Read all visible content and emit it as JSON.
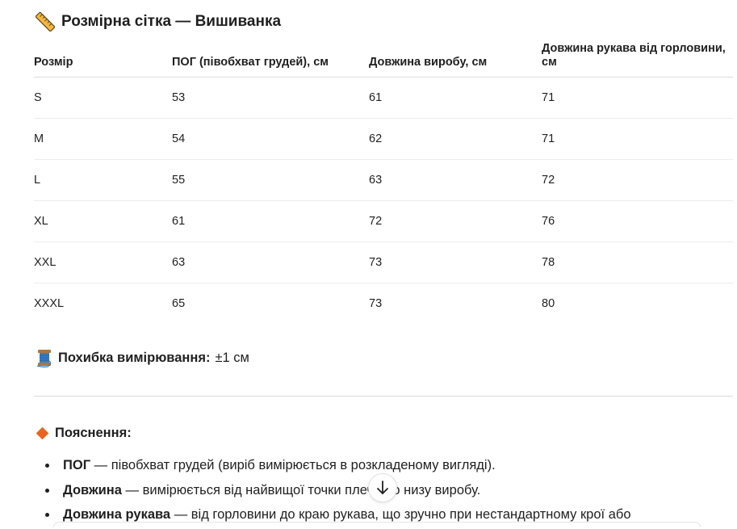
{
  "title": "Розмірна сітка — Вишиванка",
  "table": {
    "headers": [
      "Розмір",
      "ПОГ (півобхват грудей), см",
      "Довжина виробу, см",
      "Довжина рукава від горловини, см"
    ],
    "rows": [
      [
        "S",
        "53",
        "61",
        "71"
      ],
      [
        "M",
        "54",
        "62",
        "71"
      ],
      [
        "L",
        "55",
        "63",
        "72"
      ],
      [
        "XL",
        "61",
        "72",
        "76"
      ],
      [
        "XXL",
        "63",
        "73",
        "78"
      ],
      [
        "XXXL",
        "65",
        "73",
        "80"
      ]
    ]
  },
  "tolerance": {
    "label": "Похибка вимірювання:",
    "value": "±1 см"
  },
  "notes": {
    "title": "Пояснення:",
    "items": [
      {
        "term": "ПОГ",
        "text": " — півобхват грудей (виріб вимірюється в розкладеному вигляді)."
      },
      {
        "term": "Довжина",
        "text": " — вимірюється від найвищої точки плеча до низу виробу."
      },
      {
        "term": "Довжина рукава",
        "text": " — від горловини до краю рукава, що зручно при нестандартному крої або"
      }
    ]
  },
  "icons": {
    "title_icon": "ruler-icon",
    "tolerance_icon": "thread-spool-icon",
    "notes_icon": "orange-diamond-icon",
    "scroll_icon": "arrow-down-icon"
  },
  "colors": {
    "accent_diamond": "#e8641f",
    "ruler_yellow": "#f4b63c",
    "spool_blue": "#3b7fc4"
  }
}
